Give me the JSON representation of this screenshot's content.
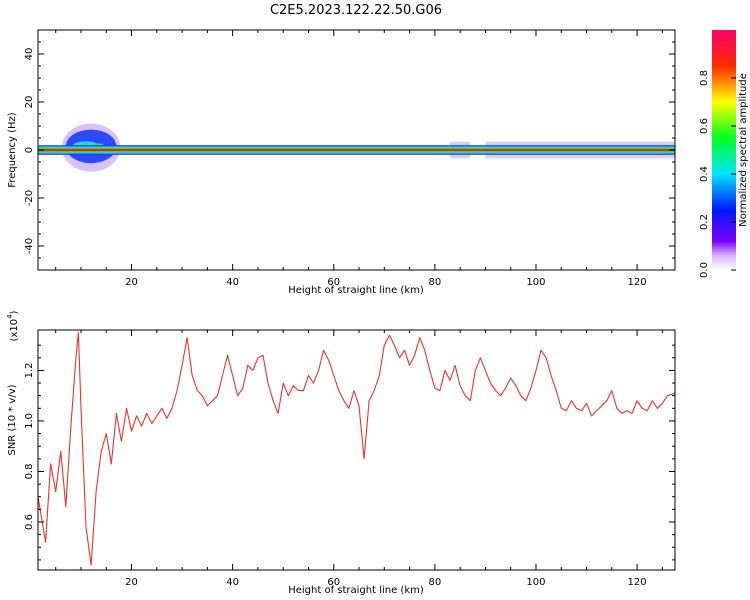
{
  "title": "C2E5.2023.122.22.50.G06",
  "colors": {
    "snr_line": "#e8332f",
    "band_red": "#ff1a1a",
    "band_blue": "#1a3cff",
    "band_cyan": "#22d7e0",
    "band_green": "#2ee62e",
    "halo_purple": "#b98cff"
  },
  "chart_data": [
    {
      "type": "heatmap",
      "name": "spectrogram",
      "xlabel": "Height of straight line (km)",
      "ylabel": "Frequency (Hz)",
      "xlim": [
        1.5,
        127.5
      ],
      "ylim": [
        -50,
        50
      ],
      "xticks": [
        20,
        40,
        60,
        80,
        100,
        120
      ],
      "xtick_labels": [
        "20",
        "40",
        "60",
        "80",
        "100",
        "120"
      ],
      "yticks": [
        -40,
        -20,
        0,
        20,
        40
      ],
      "ytick_labels": [
        "-40",
        "-20",
        "0",
        "20",
        "40"
      ],
      "band_center_hz": 0,
      "band_halfwidth_hz": 1.5,
      "disturbance": {
        "x_range_km": [
          7,
          17
        ],
        "max_offset_hz": 6
      },
      "halo_segments_km": [
        [
          83,
          87
        ],
        [
          90,
          127.5
        ]
      ],
      "grid": false
    },
    {
      "type": "colorbar",
      "label": "Normalized spectral amplitude",
      "range": [
        0.0,
        1.0
      ],
      "ticks": [
        0.0,
        0.2,
        0.4,
        0.6,
        0.8
      ],
      "tick_labels": [
        "0.0",
        "0.2",
        "0.4",
        "0.6",
        "0.8"
      ]
    },
    {
      "type": "line",
      "name": "snr",
      "xlabel": "Height of straight line (km)",
      "ylabel": "SNR (10 * v/v)",
      "y_multiplier_label": "(x10",
      "y_multiplier_exp": "4",
      "y_multiplier_close": ")",
      "xlim": [
        1.5,
        127.5
      ],
      "ylim": [
        0.41,
        1.36
      ],
      "xticks": [
        20,
        40,
        60,
        80,
        100,
        120
      ],
      "xtick_labels": [
        "20",
        "40",
        "60",
        "80",
        "100",
        "120"
      ],
      "yticks": [
        0.6,
        0.8,
        1.0,
        1.2
      ],
      "ytick_labels": [
        "0.6",
        "0.8",
        "1.0",
        "1.2"
      ],
      "x": [
        1.5,
        3,
        4,
        5,
        6,
        7,
        8,
        9,
        9.5,
        10,
        11,
        12,
        13,
        14,
        15,
        16,
        17,
        18,
        19,
        20,
        21,
        22,
        23,
        24,
        25,
        26,
        27,
        28,
        29,
        30,
        31,
        32,
        33,
        34,
        35,
        36,
        37,
        38,
        39,
        40,
        41,
        42,
        43,
        44,
        45,
        46,
        47,
        48,
        49,
        50,
        51,
        52,
        53,
        54,
        55,
        56,
        57,
        58,
        59,
        60,
        61,
        62,
        63,
        64,
        65,
        66,
        67,
        68,
        69,
        70,
        71,
        72,
        73,
        74,
        75,
        76,
        77,
        78,
        79,
        80,
        81,
        82,
        83,
        84,
        85,
        86,
        87,
        88,
        89,
        90,
        91,
        92,
        93,
        94,
        95,
        96,
        97,
        98,
        99,
        100,
        101,
        102,
        103,
        104,
        105,
        106,
        107,
        108,
        109,
        110,
        111,
        112,
        113,
        114,
        115,
        116,
        117,
        118,
        119,
        120,
        121,
        122,
        123,
        124,
        125,
        126,
        127.5
      ],
      "y": [
        0.7,
        0.52,
        0.83,
        0.72,
        0.88,
        0.66,
        0.98,
        1.25,
        1.35,
        1.05,
        0.58,
        0.43,
        0.72,
        0.88,
        0.95,
        0.83,
        1.03,
        0.92,
        1.05,
        0.96,
        1.02,
        0.98,
        1.03,
        0.99,
        1.02,
        1.05,
        1.01,
        1.05,
        1.12,
        1.22,
        1.33,
        1.18,
        1.12,
        1.1,
        1.06,
        1.08,
        1.1,
        1.18,
        1.26,
        1.18,
        1.1,
        1.13,
        1.22,
        1.2,
        1.25,
        1.26,
        1.15,
        1.08,
        1.03,
        1.15,
        1.1,
        1.14,
        1.12,
        1.12,
        1.18,
        1.15,
        1.2,
        1.28,
        1.24,
        1.18,
        1.12,
        1.08,
        1.05,
        1.12,
        1.06,
        0.85,
        1.08,
        1.12,
        1.18,
        1.3,
        1.34,
        1.3,
        1.25,
        1.28,
        1.22,
        1.26,
        1.33,
        1.28,
        1.2,
        1.13,
        1.12,
        1.2,
        1.16,
        1.22,
        1.14,
        1.1,
        1.08,
        1.2,
        1.25,
        1.2,
        1.15,
        1.12,
        1.1,
        1.13,
        1.17,
        1.14,
        1.1,
        1.08,
        1.13,
        1.2,
        1.28,
        1.25,
        1.18,
        1.12,
        1.05,
        1.04,
        1.08,
        1.05,
        1.04,
        1.07,
        1.02,
        1.04,
        1.06,
        1.08,
        1.12,
        1.05,
        1.03,
        1.04,
        1.03,
        1.08,
        1.05,
        1.04,
        1.08,
        1.05,
        1.07,
        1.1,
        1.11
      ],
      "grid": false
    }
  ]
}
